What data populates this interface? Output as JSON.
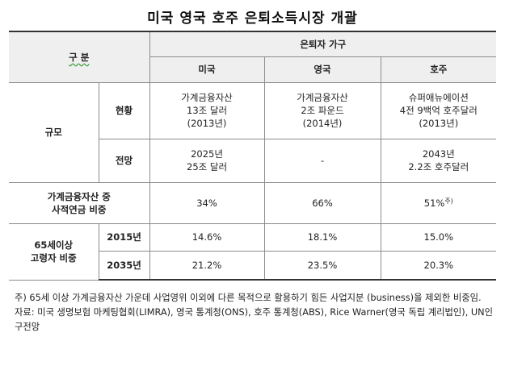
{
  "title": "미국 영국 호주 은퇴소득시장 개괄",
  "header": {
    "category": "구  분",
    "group": "은퇴자 가구",
    "countries": [
      "미국",
      "영국",
      "호주"
    ]
  },
  "scale": {
    "label": "규모",
    "current": {
      "label": "현황",
      "us": [
        "가계금융자산",
        "13조 달러",
        "(2013년)"
      ],
      "uk": [
        "가계금융자산",
        "2조 파운드",
        "(2014년)"
      ],
      "au": [
        "슈퍼애뉴에이션",
        "4전 9백억 호주달러",
        "(2013년)"
      ]
    },
    "outlook": {
      "label": "전망",
      "us": [
        "2025년",
        "25조 달러"
      ],
      "uk": "-",
      "au": [
        "2043년",
        "2.2조 호주달러"
      ]
    }
  },
  "pension_share": {
    "label_line1": "가계금융자산 중",
    "label_line2": "사적연금 비중",
    "us": "34%",
    "uk": "66%",
    "au": "51%",
    "au_note": "주)"
  },
  "elderly": {
    "label_line1": "65세이상",
    "label_line2": "고령자 비중",
    "rows": [
      {
        "year": "2015년",
        "us": "14.6%",
        "uk": "18.1%",
        "au": "15.0%"
      },
      {
        "year": "2035년",
        "us": "21.2%",
        "uk": "23.5%",
        "au": "20.3%"
      }
    ]
  },
  "notes": {
    "note1": "주) 65세 이상 가계금융자산 가운데 사업영위 이외에 다른 목적으로 활용하기 힘든 사업지분 (business)을 제외한 비중임.",
    "source": "자료: 미국 생명보험 마케팅협회(LIMRA), 영국 통계청(ONS), 호주 통계청(ABS), Rice Warner(영국 독립 계리법인), UN인구전망"
  }
}
